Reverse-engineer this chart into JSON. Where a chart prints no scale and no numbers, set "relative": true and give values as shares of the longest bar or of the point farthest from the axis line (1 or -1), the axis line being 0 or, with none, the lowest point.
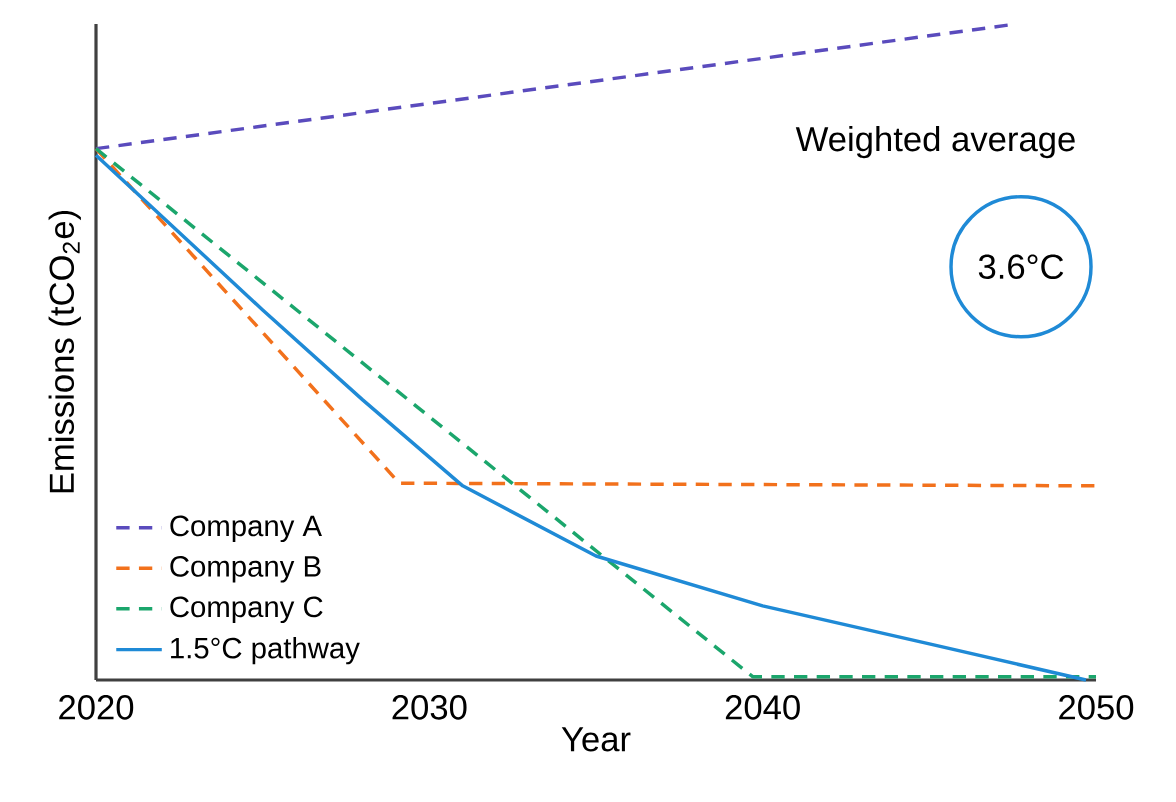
{
  "chart_data": {
    "type": "line",
    "xlabel": "Year",
    "ylabel": "Emissions (tCO$_{2}$e)",
    "relative": true,
    "xlim": [
      2020,
      2050
    ],
    "xticks": [
      2020,
      2030,
      2040,
      2050
    ],
    "legend": "bottom left",
    "marker": "none",
    "annotations": [
      "Weighted average",
      "3.6°C"
    ],
    "series": [
      {
        "name": "Company A",
        "color": "#5a4bbd",
        "line_style": "dashed",
        "x": [
          2020,
          2047.6
        ],
        "values": [
          0.81,
          1.0
        ]
      },
      {
        "name": "Company B",
        "color": "#f2711c",
        "line_style": "dashed",
        "x": [
          2020,
          2029.1,
          2050
        ],
        "values": [
          0.81,
          0.3,
          0.296
        ]
      },
      {
        "name": "Company C",
        "color": "#1ba66c",
        "line_style": "dashed",
        "x": [
          2020,
          2039.7,
          2050
        ],
        "values": [
          0.81,
          0.005,
          0.005
        ]
      },
      {
        "name": "1.5°C pathway",
        "color": "#1f8ad6",
        "line_style": "solid",
        "x": [
          2020,
          2025,
          2028,
          2031,
          2035,
          2040,
          2045,
          2049.7
        ],
        "values": [
          0.8,
          0.564,
          0.427,
          0.296,
          0.189,
          0.113,
          0.055,
          0.0
        ]
      }
    ]
  }
}
